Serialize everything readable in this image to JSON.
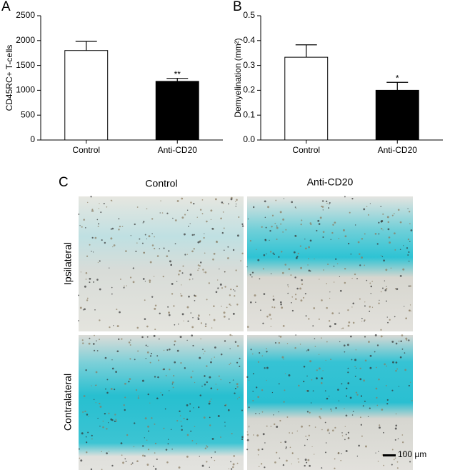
{
  "chart_data": [
    {
      "type": "bar",
      "panel": "A",
      "ylabel": "CD45RC+ T-cells",
      "categories": [
        "Control",
        "Anti-CD20"
      ],
      "values": [
        1800,
        1180
      ],
      "errors": [
        185,
        60
      ],
      "colors": [
        "#ffffff",
        "#000000"
      ],
      "annotations": [
        {
          "category": "Anti-CD20",
          "text": "**"
        }
      ],
      "ylim": [
        0,
        2500
      ],
      "yticks": [
        0,
        500,
        1000,
        1500,
        2000,
        2500
      ]
    },
    {
      "type": "bar",
      "panel": "B",
      "ylabel": "Demyelination (mm²)",
      "categories": [
        "Control",
        "Anti-CD20"
      ],
      "values": [
        0.333,
        0.2
      ],
      "errors": [
        0.05,
        0.032
      ],
      "colors": [
        "#ffffff",
        "#000000"
      ],
      "annotations": [
        {
          "category": "Anti-CD20",
          "text": "*"
        }
      ],
      "ylim": [
        0,
        0.5
      ],
      "yticks": [
        {
          "value": 0,
          "label": "0.0"
        },
        0.1,
        0.2,
        0.3,
        0.4,
        0.5
      ]
    }
  ],
  "micrographs": {
    "panel": "C",
    "columns": [
      "Control",
      "Anti-CD20"
    ],
    "rows": [
      "Ipsilateral",
      "Contralateral"
    ],
    "scale_bar": "100 µm"
  }
}
